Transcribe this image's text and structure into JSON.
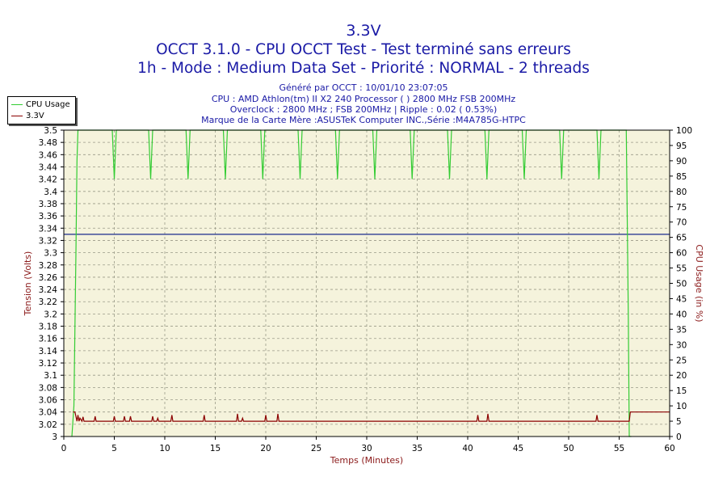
{
  "header": {
    "title": "3.3V",
    "subtitle_1": "OCCT 3.1.0 - CPU OCCT Test - Test terminé sans erreurs",
    "subtitle_2": "1h - Mode : Medium Data Set - Priorité : NORMAL - 2 threads"
  },
  "info": {
    "line_1": "Généré par OCCT : 10/01/10 23:07:05",
    "line_2": "CPU : AMD Athlon(tm) II X2 240 Processor (  ) 2800 MHz FSB 200MHz",
    "line_3": "Overclock : 2800 MHz ; FSB 200MHz | Ripple : 0.02 ( 0.53%)",
    "line_4": "Marque de la Carte Mère :ASUSTeK Computer INC.,Série :M4A785G-HTPC"
  },
  "legend": {
    "position": "top-left",
    "items": [
      {
        "label": "CPU Usage",
        "color": "#33cc33"
      },
      {
        "label": "3.3V",
        "color": "#8b0000"
      }
    ]
  },
  "chart_data": {
    "type": "line",
    "xlabel": "Temps (Minutes)",
    "ylabel_left": "Tension (Volts)",
    "ylabel_right": "CPU Usage (in %)",
    "xlim": [
      0,
      60
    ],
    "ylim_left": [
      3.0,
      3.5
    ],
    "ylim_right": [
      0,
      100
    ],
    "x_ticks": [
      "0",
      "5",
      "10",
      "15",
      "20",
      "25",
      "30",
      "35",
      "40",
      "45",
      "50",
      "55",
      "60"
    ],
    "y_ticks_left": [
      "3",
      "3.02",
      "3.04",
      "3.06",
      "3.08",
      "3.1",
      "3.12",
      "3.14",
      "3.16",
      "3.18",
      "3.2",
      "3.22",
      "3.24",
      "3.26",
      "3.28",
      "3.3",
      "3.32",
      "3.34",
      "3.36",
      "3.38",
      "3.4",
      "3.42",
      "3.44",
      "3.46",
      "3.48",
      "3.5"
    ],
    "y_ticks_right": [
      "0",
      "5",
      "10",
      "15",
      "20",
      "25",
      "30",
      "35",
      "40",
      "45",
      "50",
      "55",
      "60",
      "65",
      "70",
      "75",
      "80",
      "85",
      "90",
      "95",
      "100"
    ],
    "grid": true,
    "plot_background": "#f5f3dc",
    "reference_line": {
      "value": 3.33,
      "color": "#1a2a8c"
    },
    "series": [
      {
        "name": "CPU Usage",
        "axis": "right",
        "color": "#33cc33",
        "x": [
          0.8,
          1.0,
          1.2,
          1.3,
          1.4,
          1.6,
          4.8,
          5.0,
          5.2,
          8.4,
          8.6,
          8.8,
          12.1,
          12.3,
          12.5,
          15.8,
          16.0,
          16.2,
          19.5,
          19.7,
          19.9,
          23.2,
          23.4,
          23.6,
          26.9,
          27.1,
          27.3,
          30.6,
          30.8,
          31.0,
          34.3,
          34.5,
          34.7,
          38.0,
          38.2,
          38.4,
          41.7,
          41.9,
          42.1,
          45.4,
          45.6,
          45.8,
          49.1,
          49.3,
          49.5,
          52.8,
          53.0,
          53.2,
          55.6,
          55.7,
          55.9,
          56.0,
          56.2
        ],
        "values": [
          0,
          10,
          60,
          90,
          100,
          100,
          100,
          84,
          100,
          100,
          84,
          100,
          100,
          84,
          100,
          100,
          84,
          100,
          100,
          84,
          100,
          100,
          84,
          100,
          100,
          84,
          100,
          100,
          84,
          100,
          100,
          84,
          100,
          100,
          84,
          100,
          100,
          84,
          100,
          100,
          84,
          100,
          100,
          84,
          100,
          100,
          84,
          100,
          100,
          100,
          40,
          0,
          0
        ]
      },
      {
        "name": "3.3V",
        "axis": "left",
        "color": "#8b0000",
        "x": [
          0.9,
          1.1,
          1.3,
          1.4,
          1.5,
          1.6,
          1.8,
          1.9,
          2.0,
          2.2,
          2.4,
          2.6,
          3.0,
          3.1,
          3.2,
          4.9,
          5.0,
          5.1,
          5.9,
          6.0,
          6.1,
          6.5,
          6.6,
          6.7,
          8.7,
          8.8,
          8.9,
          9.2,
          9.3,
          9.4,
          10.6,
          10.7,
          10.8,
          13.8,
          13.9,
          14.0,
          17.1,
          17.2,
          17.3,
          17.6,
          17.7,
          17.8,
          19.9,
          20.0,
          20.1,
          21.1,
          21.2,
          21.3,
          40.9,
          41.0,
          41.1,
          41.9,
          42.0,
          42.1,
          52.7,
          52.8,
          52.9,
          56.0,
          56.1,
          60.0
        ],
        "values": [
          3.04,
          3.04,
          3.025,
          3.035,
          3.025,
          3.03,
          3.025,
          3.032,
          3.025,
          3.025,
          3.025,
          3.025,
          3.025,
          3.033,
          3.025,
          3.025,
          3.033,
          3.025,
          3.025,
          3.033,
          3.025,
          3.025,
          3.033,
          3.025,
          3.025,
          3.033,
          3.025,
          3.025,
          3.03,
          3.025,
          3.025,
          3.035,
          3.025,
          3.025,
          3.035,
          3.025,
          3.025,
          3.037,
          3.025,
          3.025,
          3.03,
          3.025,
          3.025,
          3.035,
          3.025,
          3.025,
          3.037,
          3.025,
          3.025,
          3.035,
          3.025,
          3.025,
          3.037,
          3.025,
          3.025,
          3.035,
          3.025,
          3.025,
          3.04,
          3.04
        ]
      }
    ]
  }
}
